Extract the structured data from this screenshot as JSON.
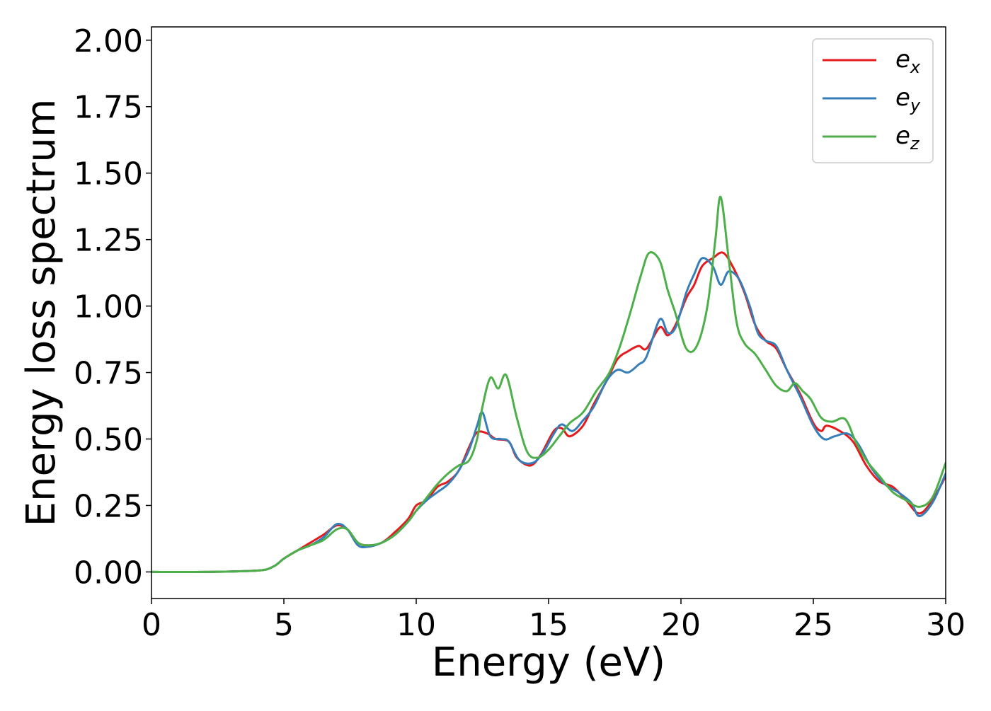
{
  "chart_data": {
    "type": "line",
    "title": "",
    "xlabel": "Energy (eV)",
    "ylabel": "Energy loss spectrum",
    "xlim": [
      0,
      30
    ],
    "ylim": [
      -0.1,
      2.05
    ],
    "xticks": [
      0,
      5,
      10,
      15,
      20,
      25,
      30
    ],
    "xtick_labels": [
      "0",
      "5",
      "10",
      "15",
      "20",
      "25",
      "30"
    ],
    "yticks": [
      0,
      0.25,
      0.5,
      0.75,
      1.0,
      1.25,
      1.5,
      1.75,
      2.0
    ],
    "ytick_labels": [
      "0.00",
      "0.25",
      "0.50",
      "0.75",
      "1.00",
      "1.25",
      "1.50",
      "1.75",
      "2.00"
    ],
    "grid": false,
    "legend_position": "top-right",
    "series": [
      {
        "name": "e_x",
        "label_base": "e",
        "label_sub": "x",
        "color": "#e41a1c",
        "points": [
          [
            0,
            0
          ],
          [
            2,
            0
          ],
          [
            4,
            0.005
          ],
          [
            4.6,
            0.02
          ],
          [
            5,
            0.05
          ],
          [
            5.5,
            0.08
          ],
          [
            6,
            0.11
          ],
          [
            6.5,
            0.14
          ],
          [
            7,
            0.175
          ],
          [
            7.4,
            0.16
          ],
          [
            7.8,
            0.11
          ],
          [
            8.2,
            0.1
          ],
          [
            8.7,
            0.11
          ],
          [
            9.2,
            0.15
          ],
          [
            9.7,
            0.2
          ],
          [
            10,
            0.25
          ],
          [
            10.4,
            0.27
          ],
          [
            10.8,
            0.32
          ],
          [
            11.2,
            0.34
          ],
          [
            11.6,
            0.38
          ],
          [
            12,
            0.47
          ],
          [
            12.3,
            0.525
          ],
          [
            12.7,
            0.52
          ],
          [
            13,
            0.5
          ],
          [
            13.5,
            0.49
          ],
          [
            13.8,
            0.43
          ],
          [
            14.3,
            0.4
          ],
          [
            14.7,
            0.44
          ],
          [
            15.2,
            0.53
          ],
          [
            15.5,
            0.54
          ],
          [
            15.8,
            0.51
          ],
          [
            16.3,
            0.55
          ],
          [
            16.7,
            0.63
          ],
          [
            17.2,
            0.72
          ],
          [
            17.6,
            0.8
          ],
          [
            18,
            0.83
          ],
          [
            18.4,
            0.85
          ],
          [
            18.7,
            0.84
          ],
          [
            19.2,
            0.92
          ],
          [
            19.5,
            0.89
          ],
          [
            19.8,
            0.93
          ],
          [
            20.2,
            1.03
          ],
          [
            20.5,
            1.08
          ],
          [
            20.8,
            1.15
          ],
          [
            21.2,
            1.18
          ],
          [
            21.6,
            1.2
          ],
          [
            22,
            1.14
          ],
          [
            22.4,
            1.05
          ],
          [
            22.8,
            0.93
          ],
          [
            23.2,
            0.87
          ],
          [
            23.6,
            0.84
          ],
          [
            24,
            0.76
          ],
          [
            24.5,
            0.67
          ],
          [
            25,
            0.56
          ],
          [
            25.3,
            0.53
          ],
          [
            25.5,
            0.55
          ],
          [
            26,
            0.53
          ],
          [
            26.5,
            0.49
          ],
          [
            27,
            0.4
          ],
          [
            27.5,
            0.34
          ],
          [
            28,
            0.32
          ],
          [
            28.5,
            0.27
          ],
          [
            29,
            0.22
          ],
          [
            29.5,
            0.27
          ],
          [
            30,
            0.36
          ]
        ]
      },
      {
        "name": "e_y",
        "label_base": "e",
        "label_sub": "y",
        "color": "#377eb8",
        "points": [
          [
            0,
            0
          ],
          [
            2,
            0
          ],
          [
            4,
            0.005
          ],
          [
            4.6,
            0.02
          ],
          [
            5,
            0.05
          ],
          [
            5.5,
            0.08
          ],
          [
            6,
            0.1
          ],
          [
            6.5,
            0.13
          ],
          [
            7,
            0.18
          ],
          [
            7.4,
            0.16
          ],
          [
            7.8,
            0.1
          ],
          [
            8.2,
            0.095
          ],
          [
            8.7,
            0.11
          ],
          [
            9.2,
            0.14
          ],
          [
            9.7,
            0.19
          ],
          [
            10,
            0.23
          ],
          [
            10.4,
            0.27
          ],
          [
            10.8,
            0.3
          ],
          [
            11.2,
            0.33
          ],
          [
            11.6,
            0.38
          ],
          [
            12,
            0.46
          ],
          [
            12.3,
            0.55
          ],
          [
            12.5,
            0.6
          ],
          [
            12.8,
            0.51
          ],
          [
            13.2,
            0.5
          ],
          [
            13.5,
            0.49
          ],
          [
            13.9,
            0.42
          ],
          [
            14.4,
            0.41
          ],
          [
            14.8,
            0.45
          ],
          [
            15.2,
            0.52
          ],
          [
            15.5,
            0.555
          ],
          [
            15.9,
            0.53
          ],
          [
            16.3,
            0.57
          ],
          [
            16.7,
            0.62
          ],
          [
            17.2,
            0.72
          ],
          [
            17.6,
            0.76
          ],
          [
            18,
            0.75
          ],
          [
            18.4,
            0.78
          ],
          [
            18.7,
            0.81
          ],
          [
            19.2,
            0.95
          ],
          [
            19.5,
            0.9
          ],
          [
            19.8,
            0.92
          ],
          [
            20.2,
            1.05
          ],
          [
            20.5,
            1.12
          ],
          [
            20.8,
            1.18
          ],
          [
            21.2,
            1.15
          ],
          [
            21.5,
            1.08
          ],
          [
            21.8,
            1.13
          ],
          [
            22.2,
            1.1
          ],
          [
            22.6,
            1.0
          ],
          [
            22.9,
            0.9
          ],
          [
            23.2,
            0.87
          ],
          [
            23.6,
            0.85
          ],
          [
            24,
            0.76
          ],
          [
            24.5,
            0.66
          ],
          [
            25,
            0.55
          ],
          [
            25.4,
            0.5
          ],
          [
            25.8,
            0.51
          ],
          [
            26.3,
            0.52
          ],
          [
            26.7,
            0.48
          ],
          [
            27.2,
            0.39
          ],
          [
            27.7,
            0.33
          ],
          [
            28.2,
            0.3
          ],
          [
            28.7,
            0.26
          ],
          [
            29,
            0.21
          ],
          [
            29.5,
            0.26
          ],
          [
            30,
            0.37
          ]
        ]
      },
      {
        "name": "e_z",
        "label_base": "e",
        "label_sub": "z",
        "color": "#4daf4a",
        "points": [
          [
            0,
            0
          ],
          [
            2,
            0
          ],
          [
            4,
            0.005
          ],
          [
            4.6,
            0.02
          ],
          [
            5,
            0.05
          ],
          [
            5.5,
            0.08
          ],
          [
            6,
            0.1
          ],
          [
            6.5,
            0.12
          ],
          [
            7,
            0.16
          ],
          [
            7.4,
            0.16
          ],
          [
            7.8,
            0.11
          ],
          [
            8.2,
            0.1
          ],
          [
            8.7,
            0.11
          ],
          [
            9.2,
            0.14
          ],
          [
            9.7,
            0.19
          ],
          [
            10,
            0.23
          ],
          [
            10.4,
            0.28
          ],
          [
            10.8,
            0.33
          ],
          [
            11.2,
            0.37
          ],
          [
            11.6,
            0.4
          ],
          [
            12,
            0.42
          ],
          [
            12.3,
            0.5
          ],
          [
            12.5,
            0.62
          ],
          [
            12.8,
            0.73
          ],
          [
            13.1,
            0.69
          ],
          [
            13.4,
            0.74
          ],
          [
            13.8,
            0.58
          ],
          [
            14.2,
            0.45
          ],
          [
            14.6,
            0.43
          ],
          [
            15,
            0.46
          ],
          [
            15.4,
            0.51
          ],
          [
            15.8,
            0.56
          ],
          [
            16.3,
            0.6
          ],
          [
            16.8,
            0.68
          ],
          [
            17.3,
            0.75
          ],
          [
            17.7,
            0.85
          ],
          [
            18.1,
            0.98
          ],
          [
            18.5,
            1.12
          ],
          [
            18.8,
            1.2
          ],
          [
            19.2,
            1.17
          ],
          [
            19.5,
            1.06
          ],
          [
            19.8,
            0.97
          ],
          [
            20.2,
            0.84
          ],
          [
            20.6,
            0.85
          ],
          [
            21,
            1.0
          ],
          [
            21.3,
            1.25
          ],
          [
            21.5,
            1.41
          ],
          [
            21.8,
            1.18
          ],
          [
            22.1,
            0.94
          ],
          [
            22.4,
            0.86
          ],
          [
            22.8,
            0.82
          ],
          [
            23.2,
            0.76
          ],
          [
            23.6,
            0.7
          ],
          [
            24,
            0.68
          ],
          [
            24.3,
            0.71
          ],
          [
            24.6,
            0.68
          ],
          [
            24.9,
            0.65
          ],
          [
            25.3,
            0.58
          ],
          [
            25.7,
            0.565
          ],
          [
            26.2,
            0.575
          ],
          [
            26.6,
            0.49
          ],
          [
            27,
            0.42
          ],
          [
            27.5,
            0.36
          ],
          [
            28,
            0.3
          ],
          [
            28.5,
            0.27
          ],
          [
            29,
            0.245
          ],
          [
            29.5,
            0.28
          ],
          [
            30,
            0.41
          ]
        ]
      }
    ]
  }
}
